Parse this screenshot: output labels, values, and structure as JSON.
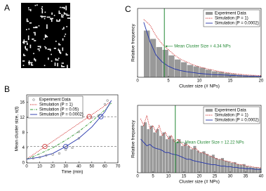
{
  "chart_data": [
    {
      "type": "image",
      "panel": "A"
    },
    {
      "type": "line",
      "panel": "B",
      "xlabel": "Time (min)",
      "ylabel": "Mean cluster size, s(t)",
      "xlim": [
        0,
        70
      ],
      "ylim": [
        0,
        18
      ],
      "xticks": [
        0,
        10,
        20,
        30,
        40,
        50,
        60,
        70
      ],
      "yticks": [
        0,
        4,
        8,
        12,
        16
      ],
      "legend": "upper left",
      "scatter": {
        "name": "Experiment Data",
        "color": "#888888",
        "x": [
          5,
          10,
          15,
          20,
          25,
          30,
          30,
          35,
          40,
          40,
          50,
          55,
          60,
          62
        ],
        "values": [
          1.2,
          1.5,
          2,
          2.2,
          2.5,
          3.5,
          4.2,
          4,
          6.5,
          8.2,
          12,
          12.5,
          15.5,
          16.5
        ]
      },
      "x": [
        0,
        10,
        20,
        30,
        40,
        50,
        60,
        65
      ],
      "series": [
        {
          "name": "Simulation (P = 1)",
          "color": "#cc2222",
          "style": "dotted",
          "values": [
            1,
            3.35,
            5.7,
            8.05,
            10.4,
            12.75,
            15.1,
            16.3
          ]
        },
        {
          "name": "Simulation (P = 0.05)",
          "color": "#339933",
          "style": "dashdot",
          "values": [
            1,
            2.4,
            4,
            6,
            8.3,
            11,
            14,
            15.8
          ]
        },
        {
          "name": "Simulation (P = 0.0002)",
          "color": "#2233aa",
          "style": "solid",
          "values": [
            1,
            1.5,
            2.5,
            4.34,
            6.5,
            9.5,
            13.5,
            16.5
          ]
        }
      ],
      "hlines": [
        4.34,
        12.22
      ],
      "markers": [
        {
          "color": "#cc2222",
          "x": [
            14,
            48
          ],
          "values": [
            4.34,
            12.22
          ]
        },
        {
          "color": "#2233aa",
          "x": [
            30,
            57
          ],
          "values": [
            4.34,
            12.22
          ]
        }
      ]
    },
    {
      "type": "histogram",
      "panel": "C",
      "xlabel": "Cluster size (# NPs)",
      "ylabel": "Relative frequency",
      "xlim": [
        0,
        20
      ],
      "ylim": [
        0,
        0.25
      ],
      "xticks": [
        0,
        5,
        10,
        15,
        20
      ],
      "legend": "upper right",
      "name": "Experiment Data",
      "color": "#999999",
      "bins": [
        1,
        2,
        3,
        4,
        5,
        6,
        7,
        8,
        9,
        10,
        11,
        12,
        13,
        14,
        15,
        16,
        17,
        18,
        19,
        20
      ],
      "values": [
        0.17,
        0.14,
        0.11,
        0.1,
        0.08,
        0.065,
        0.055,
        0.045,
        0.04,
        0.035,
        0.028,
        0.022,
        0.02,
        0.016,
        0.013,
        0.01,
        0.008,
        0.007,
        0.005
      ],
      "x": [
        1,
        2,
        3,
        4,
        5,
        6,
        7,
        8,
        9,
        10,
        11,
        12,
        13,
        14,
        15,
        16,
        17,
        18,
        19,
        20
      ],
      "series": [
        {
          "name": "Simulation (P = 1)",
          "color": "#cc2222",
          "style": "dotted",
          "values": [
            0.21,
            0.19,
            0.15,
            0.12,
            0.1,
            0.08,
            0.065,
            0.055,
            0.045,
            0.038,
            0.032,
            0.027,
            0.022,
            0.018,
            0.015,
            0.012,
            0.01,
            0.008,
            0.007,
            0.006
          ]
        },
        {
          "name": "Simulation (P = 0.0002)",
          "color": "#2233aa",
          "style": "solid",
          "values": [
            0.2,
            0.13,
            0.08,
            0.055,
            0.04,
            0.03,
            0.024,
            0.02,
            0.017,
            0.014,
            0.012,
            0.01,
            0.009,
            0.008,
            0.007,
            0.006,
            0.005,
            0.004,
            0.004,
            0.003
          ]
        }
      ],
      "mean": 4.34,
      "mean_color": "#228833",
      "annotation": "Mean Cluster Size = 4.34 NPs"
    },
    {
      "type": "histogram",
      "xlabel": "Cluster size (# NPs)",
      "ylabel": "Relative frequency",
      "xlim": [
        0,
        40
      ],
      "ylim": [
        0,
        0.1
      ],
      "xticks": [
        0,
        5,
        10,
        15,
        20,
        25,
        30,
        35,
        40
      ],
      "legend": "upper right",
      "name": "Experiment Data",
      "color": "#999999",
      "bins": [
        1,
        2,
        3,
        4,
        5,
        6,
        7,
        8,
        9,
        10,
        11,
        12,
        13,
        14,
        15,
        16,
        17,
        18,
        19,
        20,
        21,
        22,
        23,
        24,
        25,
        26,
        27,
        28,
        29,
        30,
        31,
        32,
        33,
        34,
        35,
        36,
        37,
        38,
        39,
        40
      ],
      "values": [
        0.07,
        0.075,
        0.065,
        0.07,
        0.06,
        0.065,
        0.055,
        0.06,
        0.05,
        0.055,
        0.05,
        0.045,
        0.05,
        0.04,
        0.045,
        0.04,
        0.035,
        0.04,
        0.033,
        0.03,
        0.032,
        0.028,
        0.025,
        0.027,
        0.022,
        0.02,
        0.022,
        0.018,
        0.017,
        0.015,
        0.016,
        0.013,
        0.012,
        0.013,
        0.01,
        0.009,
        0.008,
        0.008,
        0.007
      ],
      "x": [
        1,
        2,
        3,
        4,
        5,
        6,
        7,
        8,
        9,
        10,
        11,
        12,
        13,
        14,
        15,
        16,
        17,
        18,
        19,
        20,
        21,
        22,
        23,
        24,
        25,
        26,
        27,
        28,
        29,
        30,
        31,
        32,
        33,
        34,
        35,
        36,
        37,
        38,
        39,
        40
      ],
      "series": [
        {
          "name": "Simulation (P = 1)",
          "color": "#cc2222",
          "style": "dotted",
          "values": [
            0.08,
            0.07,
            0.085,
            0.065,
            0.07,
            0.06,
            0.07,
            0.055,
            0.06,
            0.05,
            0.055,
            0.045,
            0.05,
            0.045,
            0.04,
            0.042,
            0.038,
            0.035,
            0.036,
            0.03,
            0.03,
            0.028,
            0.026,
            0.024,
            0.022,
            0.02,
            0.02,
            0.018,
            0.017,
            0.016,
            0.015,
            0.013,
            0.012,
            0.012,
            0.01,
            0.01,
            0.009,
            0.008,
            0.008,
            0.007
          ]
        },
        {
          "name": "Simulation (P = 0.0002)",
          "color": "#2233aa",
          "style": "solid",
          "values": [
            0.05,
            0.045,
            0.04,
            0.042,
            0.038,
            0.036,
            0.035,
            0.033,
            0.03,
            0.03,
            0.028,
            0.027,
            0.026,
            0.024,
            0.022,
            0.02,
            0.02,
            0.018,
            0.017,
            0.016,
            0.015,
            0.014,
            0.013,
            0.012,
            0.012,
            0.011,
            0.01,
            0.01,
            0.009,
            0.009,
            0.008,
            0.008,
            0.007,
            0.007,
            0.006,
            0.006,
            0.006,
            0.005,
            0.005,
            0.005
          ]
        }
      ],
      "mean": 12.22,
      "mean_color": "#228833",
      "annotation": "Mean Cluster Size = 12.22 NPs"
    }
  ]
}
